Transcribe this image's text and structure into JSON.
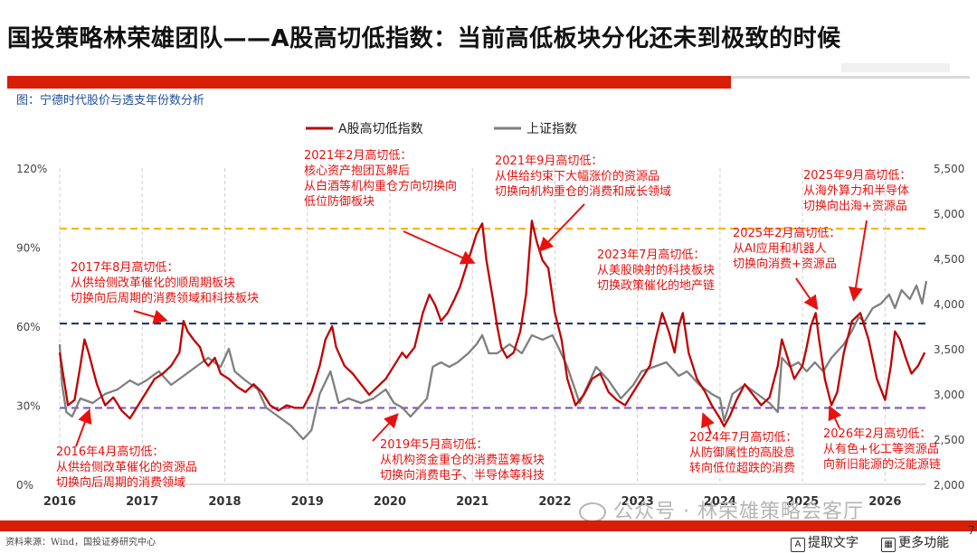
{
  "header": {
    "title": "国投策略林荣雄团队——A股高切低指数：当前高低板块分化还未到极致的时候",
    "subtitle": "图：宁德时代股价与透支年份数分析"
  },
  "footer": {
    "source": "资料来源：Wind，国投证券研究中心",
    "page": "7",
    "watermark": "公众号 · 林荣雄策略会客厅"
  },
  "toolbar": {
    "extract_label": "提取文字",
    "more_label": "更多功能",
    "extract_icon": "text-scan-icon",
    "more_icon": "grid-icon"
  },
  "chart_data": {
    "type": "line",
    "legend": [
      "A股高切低指数",
      "上证指数"
    ],
    "colors": {
      "A股高切低指数": "#c00000",
      "上证指数": "#7f7f7f",
      "yellow": "#f5b800",
      "navy": "#1f3b6e",
      "purple": "#7e57c2",
      "annotation": "#e8110f"
    },
    "x_ticks": [
      "2016",
      "2017",
      "2018",
      "2019",
      "2020",
      "2021",
      "2022",
      "2023",
      "2024",
      "2025",
      "2026"
    ],
    "x_range": [
      2016.0,
      2026.5
    ],
    "y_left_ticks": [
      "0%",
      "30%",
      "60%",
      "90%",
      "120%"
    ],
    "y_left_range": [
      0,
      120
    ],
    "y_right_ticks": [
      "2,000",
      "2,500",
      "3,000",
      "3,500",
      "4,000",
      "4,500",
      "5,000",
      "5,500"
    ],
    "y_right_range": [
      2000,
      5500
    ],
    "reference_lines": [
      {
        "value": 97,
        "axis": "left",
        "color": "yellow"
      },
      {
        "value": 61,
        "axis": "left",
        "color": "navy"
      },
      {
        "value": 29,
        "axis": "left",
        "color": "purple"
      }
    ],
    "series": [
      {
        "name": "A股高切低指数",
        "axis": "left",
        "points": [
          [
            2016.0,
            50
          ],
          [
            2016.05,
            40
          ],
          [
            2016.1,
            30
          ],
          [
            2016.18,
            32
          ],
          [
            2016.25,
            45
          ],
          [
            2016.3,
            55
          ],
          [
            2016.35,
            50
          ],
          [
            2016.45,
            38
          ],
          [
            2016.55,
            30
          ],
          [
            2016.65,
            33
          ],
          [
            2016.75,
            28
          ],
          [
            2016.85,
            25
          ],
          [
            2016.95,
            30
          ],
          [
            2017.05,
            35
          ],
          [
            2017.15,
            40
          ],
          [
            2017.25,
            42
          ],
          [
            2017.35,
            45
          ],
          [
            2017.45,
            50
          ],
          [
            2017.5,
            62
          ],
          [
            2017.55,
            58
          ],
          [
            2017.62,
            55
          ],
          [
            2017.7,
            52
          ],
          [
            2017.75,
            47
          ],
          [
            2017.8,
            45
          ],
          [
            2017.88,
            48
          ],
          [
            2017.95,
            42
          ],
          [
            2018.05,
            40
          ],
          [
            2018.15,
            37
          ],
          [
            2018.25,
            35
          ],
          [
            2018.35,
            38
          ],
          [
            2018.45,
            35
          ],
          [
            2018.55,
            30
          ],
          [
            2018.65,
            28
          ],
          [
            2018.75,
            30
          ],
          [
            2018.85,
            29
          ],
          [
            2018.95,
            29
          ],
          [
            2019.05,
            35
          ],
          [
            2019.15,
            45
          ],
          [
            2019.22,
            55
          ],
          [
            2019.3,
            60
          ],
          [
            2019.35,
            52
          ],
          [
            2019.45,
            45
          ],
          [
            2019.55,
            42
          ],
          [
            2019.65,
            38
          ],
          [
            2019.75,
            34
          ],
          [
            2019.85,
            37
          ],
          [
            2019.95,
            40
          ],
          [
            2020.05,
            45
          ],
          [
            2020.15,
            50
          ],
          [
            2020.2,
            48
          ],
          [
            2020.3,
            52
          ],
          [
            2020.4,
            65
          ],
          [
            2020.48,
            72
          ],
          [
            2020.55,
            68
          ],
          [
            2020.62,
            62
          ],
          [
            2020.7,
            65
          ],
          [
            2020.78,
            70
          ],
          [
            2020.85,
            75
          ],
          [
            2020.92,
            82
          ],
          [
            2020.98,
            88
          ],
          [
            2021.05,
            95
          ],
          [
            2021.12,
            99
          ],
          [
            2021.17,
            85
          ],
          [
            2021.25,
            70
          ],
          [
            2021.3,
            60
          ],
          [
            2021.35,
            52
          ],
          [
            2021.42,
            48
          ],
          [
            2021.5,
            50
          ],
          [
            2021.58,
            58
          ],
          [
            2021.65,
            72
          ],
          [
            2021.72,
            100
          ],
          [
            2021.78,
            92
          ],
          [
            2021.85,
            85
          ],
          [
            2021.92,
            82
          ],
          [
            2022.0,
            65
          ],
          [
            2022.08,
            55
          ],
          [
            2022.15,
            40
          ],
          [
            2022.25,
            30
          ],
          [
            2022.35,
            34
          ],
          [
            2022.45,
            40
          ],
          [
            2022.55,
            42
          ],
          [
            2022.65,
            35
          ],
          [
            2022.75,
            32
          ],
          [
            2022.85,
            30
          ],
          [
            2022.95,
            35
          ],
          [
            2023.05,
            40
          ],
          [
            2023.15,
            45
          ],
          [
            2023.22,
            55
          ],
          [
            2023.3,
            65
          ],
          [
            2023.38,
            58
          ],
          [
            2023.45,
            50
          ],
          [
            2023.5,
            60
          ],
          [
            2023.55,
            65
          ],
          [
            2023.62,
            50
          ],
          [
            2023.72,
            40
          ],
          [
            2023.82,
            35
          ],
          [
            2023.9,
            30
          ],
          [
            2024.0,
            25
          ],
          [
            2024.05,
            22
          ],
          [
            2024.12,
            26
          ],
          [
            2024.2,
            32
          ],
          [
            2024.3,
            38
          ],
          [
            2024.4,
            34
          ],
          [
            2024.5,
            30
          ],
          [
            2024.6,
            33
          ],
          [
            2024.7,
            45
          ],
          [
            2024.75,
            55
          ],
          [
            2024.82,
            48
          ],
          [
            2024.9,
            40
          ],
          [
            2025.0,
            45
          ],
          [
            2025.05,
            52
          ],
          [
            2025.1,
            60
          ],
          [
            2025.16,
            65
          ],
          [
            2025.2,
            55
          ],
          [
            2025.27,
            40
          ],
          [
            2025.35,
            30
          ],
          [
            2025.42,
            35
          ],
          [
            2025.5,
            50
          ],
          [
            2025.6,
            62
          ],
          [
            2025.7,
            65
          ],
          [
            2025.8,
            55
          ],
          [
            2025.9,
            40
          ],
          [
            2026.0,
            32
          ],
          [
            2026.07,
            45
          ],
          [
            2026.12,
            58
          ],
          [
            2026.18,
            55
          ],
          [
            2026.25,
            48
          ],
          [
            2026.32,
            42
          ],
          [
            2026.4,
            45
          ],
          [
            2026.48,
            50
          ]
        ]
      },
      {
        "name": "上证指数",
        "axis": "right",
        "points": [
          [
            2016.0,
            3550
          ],
          [
            2016.03,
            3100
          ],
          [
            2016.08,
            2800
          ],
          [
            2016.15,
            2750
          ],
          [
            2016.25,
            2950
          ],
          [
            2016.4,
            2900
          ],
          [
            2016.55,
            3000
          ],
          [
            2016.7,
            3050
          ],
          [
            2016.85,
            3150
          ],
          [
            2016.95,
            3100
          ],
          [
            2017.05,
            3150
          ],
          [
            2017.2,
            3250
          ],
          [
            2017.35,
            3100
          ],
          [
            2017.5,
            3200
          ],
          [
            2017.65,
            3300
          ],
          [
            2017.8,
            3400
          ],
          [
            2017.95,
            3300
          ],
          [
            2018.05,
            3500
          ],
          [
            2018.12,
            3250
          ],
          [
            2018.25,
            3150
          ],
          [
            2018.4,
            3050
          ],
          [
            2018.5,
            2850
          ],
          [
            2018.65,
            2750
          ],
          [
            2018.8,
            2650
          ],
          [
            2018.95,
            2500
          ],
          [
            2019.05,
            2600
          ],
          [
            2019.15,
            3000
          ],
          [
            2019.28,
            3250
          ],
          [
            2019.38,
            2900
          ],
          [
            2019.5,
            2950
          ],
          [
            2019.65,
            2900
          ],
          [
            2019.8,
            2950
          ],
          [
            2019.95,
            3050
          ],
          [
            2020.05,
            2900
          ],
          [
            2020.15,
            2850
          ],
          [
            2020.25,
            2750
          ],
          [
            2020.35,
            2850
          ],
          [
            2020.45,
            2950
          ],
          [
            2020.52,
            3300
          ],
          [
            2020.62,
            3350
          ],
          [
            2020.72,
            3300
          ],
          [
            2020.82,
            3350
          ],
          [
            2020.95,
            3450
          ],
          [
            2021.05,
            3550
          ],
          [
            2021.12,
            3650
          ],
          [
            2021.2,
            3450
          ],
          [
            2021.3,
            3450
          ],
          [
            2021.45,
            3550
          ],
          [
            2021.6,
            3450
          ],
          [
            2021.72,
            3650
          ],
          [
            2021.85,
            3600
          ],
          [
            2021.97,
            3650
          ],
          [
            2022.05,
            3500
          ],
          [
            2022.15,
            3300
          ],
          [
            2022.3,
            2900
          ],
          [
            2022.4,
            3100
          ],
          [
            2022.5,
            3300
          ],
          [
            2022.65,
            3150
          ],
          [
            2022.8,
            2950
          ],
          [
            2022.95,
            3100
          ],
          [
            2023.05,
            3250
          ],
          [
            2023.2,
            3300
          ],
          [
            2023.35,
            3350
          ],
          [
            2023.5,
            3200
          ],
          [
            2023.6,
            3250
          ],
          [
            2023.75,
            3100
          ],
          [
            2023.9,
            3000
          ],
          [
            2024.0,
            2950
          ],
          [
            2024.05,
            2700
          ],
          [
            2024.15,
            3000
          ],
          [
            2024.3,
            3100
          ],
          [
            2024.45,
            3000
          ],
          [
            2024.6,
            2900
          ],
          [
            2024.7,
            2800
          ],
          [
            2024.75,
            3400
          ],
          [
            2024.85,
            3300
          ],
          [
            2024.95,
            3350
          ],
          [
            2025.05,
            3250
          ],
          [
            2025.15,
            3350
          ],
          [
            2025.25,
            3250
          ],
          [
            2025.35,
            3400
          ],
          [
            2025.5,
            3550
          ],
          [
            2025.6,
            3700
          ],
          [
            2025.68,
            3850
          ],
          [
            2025.75,
            3800
          ],
          [
            2025.85,
            3950
          ],
          [
            2025.95,
            4000
          ],
          [
            2026.05,
            4100
          ],
          [
            2026.12,
            3950
          ],
          [
            2026.2,
            4150
          ],
          [
            2026.3,
            4050
          ],
          [
            2026.38,
            4200
          ],
          [
            2026.45,
            4000
          ],
          [
            2026.5,
            4250
          ]
        ]
      }
    ],
    "annotations": [
      {
        "title": "2017年8月高切低：",
        "lines": [
          "从供给侧改革催化的顺周期板块",
          "切换向后周期的消费领域和科技板块"
        ]
      },
      {
        "title": "2021年2月高切低：",
        "lines": [
          "核心资产抱团瓦解后",
          "从白酒等机构重仓方向切换向",
          "低位防御板块"
        ]
      },
      {
        "title": "2021年9月高切低：",
        "lines": [
          "从供给约束下大幅涨价的资源品",
          "切换向机构重仓的消费和成长领域"
        ]
      },
      {
        "title": "2023年7月高切低：",
        "lines": [
          "从美股映射的科技板块",
          "切换政策催化的地产链"
        ]
      },
      {
        "title": "2025年2月高切低：",
        "lines": [
          "从AI应用和机器人",
          "切换向消费+资源品"
        ]
      },
      {
        "title": "2025年9月高切低：",
        "lines": [
          "从海外算力和半导体",
          "切换向出海+资源品"
        ]
      },
      {
        "title": "2016年4月高切低：",
        "lines": [
          "从供给侧改革催化的资源品",
          "切换向后周期的消费领域"
        ]
      },
      {
        "title": "2019年5月高切低：",
        "lines": [
          "从机构资金重仓的消费蓝筹板块",
          "切换向消费电子、半导体等科技"
        ]
      },
      {
        "title": "2024年7月高切低：",
        "lines": [
          "从防御属性的高股息",
          "转向低位超跌的消费"
        ]
      },
      {
        "title": "2026年2月高切低：",
        "lines": [
          "从有色+化工等资源品",
          "向新旧能源的泛能源链"
        ]
      }
    ]
  }
}
